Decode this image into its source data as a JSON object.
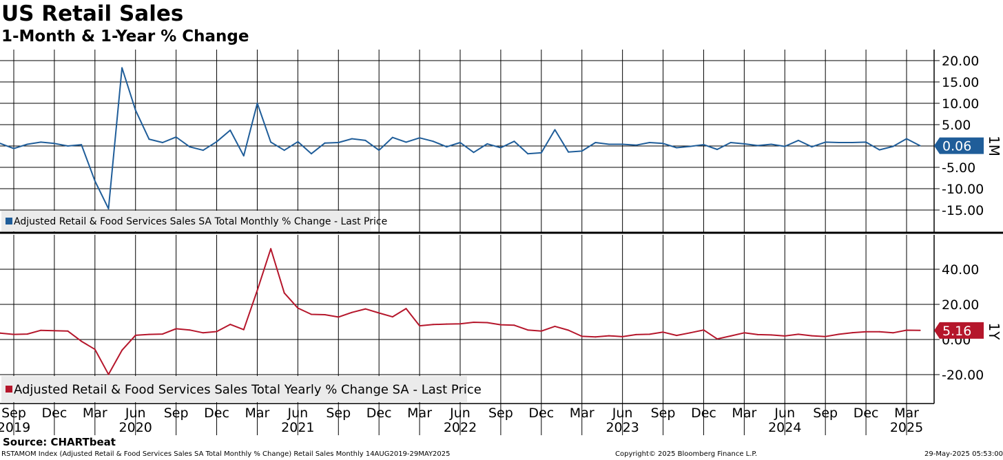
{
  "header": {
    "title": "US Retail Sales",
    "subtitle": "1-Month & 1-Year % Change"
  },
  "colors": {
    "monthly": "#1f5d99",
    "yearly": "#b5162b",
    "grid": "#000000"
  },
  "chart_data": [
    {
      "type": "line",
      "panel_label": "1M",
      "legend_position": "bottom-left",
      "grid": true,
      "ylim": [
        -20,
        22
      ],
      "ytick_values": [
        -15,
        -10,
        -5,
        0,
        5,
        10,
        15,
        20
      ],
      "ytick_labels": [
        "-15.00",
        "-10.00",
        "-5.00",
        "",
        "5.00",
        "10.00",
        "15.00",
        "20.00"
      ],
      "last_value_label": "0.06",
      "series": [
        {
          "name": "Adjusted Retail & Food Services Sales SA Total Monthly % Change - Last Price",
          "x": [
            "2019-08",
            "2019-09",
            "2019-10",
            "2019-11",
            "2019-12",
            "2020-01",
            "2020-02",
            "2020-03",
            "2020-04",
            "2020-05",
            "2020-06",
            "2020-07",
            "2020-08",
            "2020-09",
            "2020-10",
            "2020-11",
            "2020-12",
            "2021-01",
            "2021-02",
            "2021-03",
            "2021-04",
            "2021-05",
            "2021-06",
            "2021-07",
            "2021-08",
            "2021-09",
            "2021-10",
            "2021-11",
            "2021-12",
            "2022-01",
            "2022-02",
            "2022-03",
            "2022-04",
            "2022-05",
            "2022-06",
            "2022-07",
            "2022-08",
            "2022-09",
            "2022-10",
            "2022-11",
            "2022-12",
            "2023-01",
            "2023-02",
            "2023-03",
            "2023-04",
            "2023-05",
            "2023-06",
            "2023-07",
            "2023-08",
            "2023-09",
            "2023-10",
            "2023-11",
            "2023-12",
            "2024-01",
            "2024-02",
            "2024-03",
            "2024-04",
            "2024-05",
            "2024-06",
            "2024-07",
            "2024-08",
            "2024-09",
            "2024-10",
            "2024-11",
            "2024-12",
            "2025-01",
            "2025-02",
            "2025-03",
            "2025-04"
          ],
          "values": [
            0.6,
            -0.6,
            0.4,
            0.9,
            0.6,
            0.0,
            0.3,
            -8.2,
            -14.7,
            18.3,
            8.4,
            1.6,
            0.8,
            2.1,
            -0.2,
            -1.0,
            1.0,
            3.7,
            -2.3,
            10.0,
            0.9,
            -1.0,
            1.0,
            -1.8,
            0.7,
            0.8,
            1.7,
            1.3,
            -1.0,
            2.0,
            0.9,
            1.9,
            1.1,
            -0.2,
            0.8,
            -1.5,
            0.5,
            -0.4,
            1.1,
            -1.8,
            -1.6,
            3.8,
            -1.4,
            -1.2,
            0.8,
            0.4,
            0.4,
            0.2,
            0.8,
            0.6,
            -0.4,
            -0.1,
            0.3,
            -0.8,
            0.8,
            0.5,
            0.1,
            0.4,
            -0.1,
            1.3,
            -0.2,
            0.9,
            0.8,
            0.8,
            0.9,
            -0.9,
            -0.1,
            1.7,
            0.06
          ]
        }
      ]
    },
    {
      "type": "line",
      "panel_label": "1Y",
      "legend_position": "bottom-left",
      "grid": true,
      "ylim": [
        -35,
        60
      ],
      "ytick_values": [
        -20,
        0,
        20,
        40
      ],
      "ytick_labels": [
        "-20.00",
        "0.00",
        "20.00",
        "40.00"
      ],
      "last_value_label": "5.16",
      "series": [
        {
          "name": "Adjusted Retail & Food Services Sales Total Yearly % Change SA - Last Price",
          "x": [
            "2019-07",
            "2019-08",
            "2019-09",
            "2019-10",
            "2019-11",
            "2019-12",
            "2020-01",
            "2020-02",
            "2020-03",
            "2020-04",
            "2020-05",
            "2020-06",
            "2020-07",
            "2020-08",
            "2020-09",
            "2020-10",
            "2020-11",
            "2020-12",
            "2021-01",
            "2021-02",
            "2021-03",
            "2021-04",
            "2021-05",
            "2021-06",
            "2021-07",
            "2021-08",
            "2021-09",
            "2021-10",
            "2021-11",
            "2021-12",
            "2022-01",
            "2022-02",
            "2022-03",
            "2022-04",
            "2022-05",
            "2022-06",
            "2022-07",
            "2022-08",
            "2022-09",
            "2022-10",
            "2022-11",
            "2022-12",
            "2023-01",
            "2023-02",
            "2023-03",
            "2023-04",
            "2023-05",
            "2023-06",
            "2023-07",
            "2023-08",
            "2023-09",
            "2023-10",
            "2023-11",
            "2023-12",
            "2024-01",
            "2024-02",
            "2024-03",
            "2024-04",
            "2024-05",
            "2024-06",
            "2024-07",
            "2024-08",
            "2024-09",
            "2024-10",
            "2024-11",
            "2024-12",
            "2025-01",
            "2025-02",
            "2025-03",
            "2025-04"
          ],
          "values": [
            3.9,
            3.6,
            2.9,
            3.1,
            5.2,
            5.0,
            4.8,
            -1.0,
            -5.6,
            -19.9,
            -6.1,
            2.4,
            2.9,
            3.1,
            6.1,
            5.4,
            3.8,
            4.5,
            8.6,
            5.6,
            28.0,
            51.7,
            26.5,
            17.9,
            14.3,
            14.1,
            12.8,
            15.4,
            17.4,
            15.1,
            12.9,
            17.6,
            7.8,
            8.5,
            8.8,
            8.9,
            9.8,
            9.6,
            8.4,
            8.1,
            5.4,
            4.8,
            7.5,
            5.3,
            1.8,
            1.5,
            2.1,
            1.6,
            2.8,
            3.0,
            4.2,
            2.3,
            3.8,
            5.4,
            0.3,
            2.0,
            3.8,
            2.8,
            2.6,
            2.0,
            3.0,
            2.1,
            1.7,
            3.0,
            3.9,
            4.4,
            4.4,
            3.8,
            5.3,
            5.16
          ]
        }
      ]
    }
  ],
  "x_axis": {
    "months": [
      "Sep",
      "Dec",
      "Mar",
      "Jun",
      "Sep",
      "Dec",
      "Mar",
      "Jun",
      "Sep",
      "Dec",
      "Mar",
      "Jun",
      "Sep",
      "Dec",
      "Mar",
      "Jun",
      "Sep",
      "Dec",
      "Mar",
      "Jun",
      "Sep",
      "Dec",
      "Mar"
    ],
    "month_dates": [
      "2019-09",
      "2019-12",
      "2020-03",
      "2020-06",
      "2020-09",
      "2020-12",
      "2021-03",
      "2021-06",
      "2021-09",
      "2021-12",
      "2022-03",
      "2022-06",
      "2022-09",
      "2022-12",
      "2023-03",
      "2023-06",
      "2023-09",
      "2023-12",
      "2024-03",
      "2024-06",
      "2024-09",
      "2024-12",
      "2025-03"
    ],
    "years": [
      "2019",
      "2020",
      "2021",
      "2022",
      "2023",
      "2024",
      "2025"
    ],
    "year_dates": [
      "2019-09",
      "2020-06",
      "2021-06",
      "2022-06",
      "2023-06",
      "2024-06",
      "2025-03"
    ]
  },
  "footer": {
    "source": "Source: CHARTbeat",
    "ticker_info": "RSTAMOM Index (Adjusted Retail & Food Services Sales SA Total Monthly % Change) Retail Sales  Monthly 14AUG2019-29MAY2025",
    "copyright": "Copyright© 2025 Bloomberg Finance L.P.",
    "timestamp": "29-May-2025 05:53:00"
  }
}
